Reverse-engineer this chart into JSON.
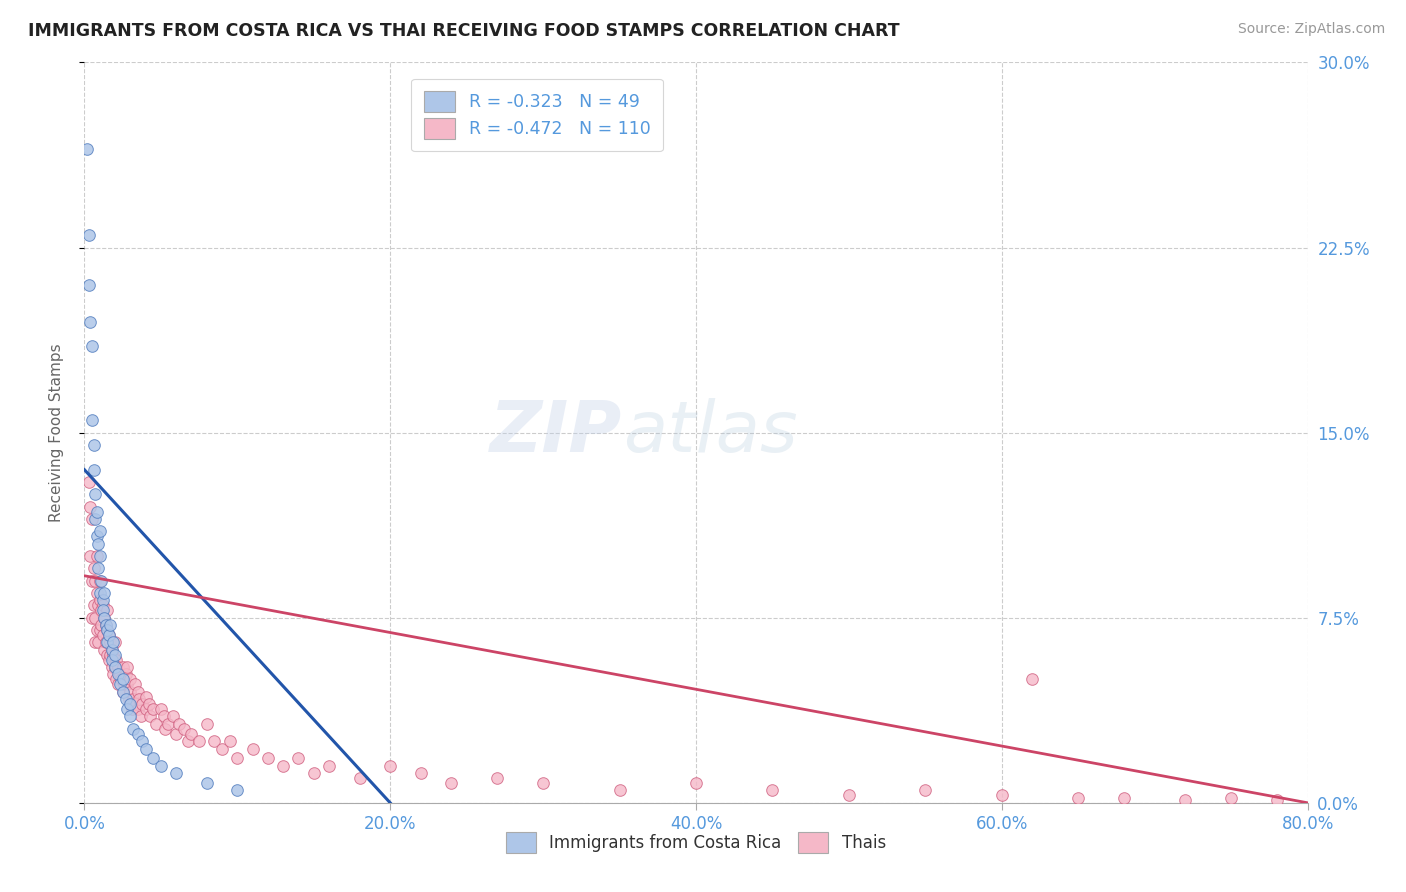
{
  "title": "IMMIGRANTS FROM COSTA RICA VS THAI RECEIVING FOOD STAMPS CORRELATION CHART",
  "source": "Source: ZipAtlas.com",
  "ylabel": "Receiving Food Stamps",
  "legend_label1": "Immigrants from Costa Rica",
  "legend_label2": "Thais",
  "R1": -0.323,
  "N1": 49,
  "R2": -0.472,
  "N2": 110,
  "color_cr": "#aec6e8",
  "color_cr_edge": "#5580c0",
  "color_cr_line": "#2255aa",
  "color_thai": "#f5b8c8",
  "color_thai_edge": "#d06080",
  "color_thai_line": "#cc4466",
  "color_axis_labels": "#5599dd",
  "title_color": "#222222",
  "watermark_color": "#c8d8ee",
  "background_color": "#ffffff",
  "grid_color": "#cccccc",
  "xlim": [
    0.0,
    0.8
  ],
  "ylim": [
    0.0,
    0.3
  ],
  "x_ticks": [
    0.0,
    0.2,
    0.4,
    0.6,
    0.8
  ],
  "y_ticks": [
    0.0,
    0.075,
    0.15,
    0.225,
    0.3
  ],
  "cr_line_x": [
    0.0,
    0.2
  ],
  "cr_line_y": [
    0.135,
    0.0
  ],
  "thai_line_x": [
    0.0,
    0.8
  ],
  "thai_line_y": [
    0.092,
    0.0
  ],
  "costa_rica_x": [
    0.002,
    0.003,
    0.003,
    0.004,
    0.005,
    0.005,
    0.006,
    0.006,
    0.007,
    0.007,
    0.008,
    0.008,
    0.009,
    0.009,
    0.01,
    0.01,
    0.01,
    0.011,
    0.012,
    0.012,
    0.013,
    0.013,
    0.014,
    0.015,
    0.015,
    0.016,
    0.017,
    0.018,
    0.018,
    0.019,
    0.02,
    0.02,
    0.022,
    0.023,
    0.025,
    0.025,
    0.027,
    0.028,
    0.03,
    0.03,
    0.032,
    0.035,
    0.038,
    0.04,
    0.045,
    0.05,
    0.06,
    0.08,
    0.1
  ],
  "costa_rica_y": [
    0.265,
    0.23,
    0.21,
    0.195,
    0.185,
    0.155,
    0.145,
    0.135,
    0.125,
    0.115,
    0.108,
    0.118,
    0.105,
    0.095,
    0.11,
    0.1,
    0.085,
    0.09,
    0.082,
    0.078,
    0.075,
    0.085,
    0.072,
    0.07,
    0.065,
    0.068,
    0.072,
    0.062,
    0.058,
    0.065,
    0.06,
    0.055,
    0.052,
    0.048,
    0.045,
    0.05,
    0.042,
    0.038,
    0.035,
    0.04,
    0.03,
    0.028,
    0.025,
    0.022,
    0.018,
    0.015,
    0.012,
    0.008,
    0.005
  ],
  "thai_x": [
    0.003,
    0.004,
    0.004,
    0.005,
    0.005,
    0.005,
    0.006,
    0.006,
    0.007,
    0.007,
    0.007,
    0.008,
    0.008,
    0.008,
    0.009,
    0.009,
    0.01,
    0.01,
    0.01,
    0.011,
    0.011,
    0.012,
    0.012,
    0.013,
    0.013,
    0.014,
    0.014,
    0.015,
    0.015,
    0.015,
    0.016,
    0.016,
    0.017,
    0.017,
    0.018,
    0.018,
    0.019,
    0.019,
    0.02,
    0.02,
    0.021,
    0.021,
    0.022,
    0.022,
    0.023,
    0.024,
    0.025,
    0.025,
    0.026,
    0.027,
    0.028,
    0.028,
    0.029,
    0.03,
    0.03,
    0.031,
    0.032,
    0.033,
    0.034,
    0.035,
    0.035,
    0.036,
    0.037,
    0.038,
    0.04,
    0.04,
    0.042,
    0.043,
    0.045,
    0.047,
    0.05,
    0.052,
    0.053,
    0.055,
    0.058,
    0.06,
    0.062,
    0.065,
    0.068,
    0.07,
    0.075,
    0.08,
    0.085,
    0.09,
    0.095,
    0.1,
    0.11,
    0.12,
    0.13,
    0.14,
    0.15,
    0.16,
    0.18,
    0.2,
    0.22,
    0.24,
    0.27,
    0.3,
    0.35,
    0.4,
    0.45,
    0.5,
    0.55,
    0.6,
    0.62,
    0.65,
    0.68,
    0.72,
    0.75,
    0.78
  ],
  "thai_y": [
    0.13,
    0.12,
    0.1,
    0.115,
    0.09,
    0.075,
    0.095,
    0.08,
    0.09,
    0.075,
    0.065,
    0.085,
    0.1,
    0.07,
    0.08,
    0.065,
    0.09,
    0.082,
    0.07,
    0.078,
    0.072,
    0.08,
    0.068,
    0.075,
    0.062,
    0.072,
    0.065,
    0.07,
    0.078,
    0.06,
    0.068,
    0.058,
    0.065,
    0.06,
    0.062,
    0.055,
    0.06,
    0.052,
    0.065,
    0.055,
    0.058,
    0.05,
    0.055,
    0.048,
    0.052,
    0.05,
    0.055,
    0.045,
    0.048,
    0.052,
    0.048,
    0.055,
    0.042,
    0.05,
    0.045,
    0.038,
    0.042,
    0.048,
    0.04,
    0.045,
    0.038,
    0.042,
    0.035,
    0.04,
    0.043,
    0.038,
    0.04,
    0.035,
    0.038,
    0.032,
    0.038,
    0.035,
    0.03,
    0.032,
    0.035,
    0.028,
    0.032,
    0.03,
    0.025,
    0.028,
    0.025,
    0.032,
    0.025,
    0.022,
    0.025,
    0.018,
    0.022,
    0.018,
    0.015,
    0.018,
    0.012,
    0.015,
    0.01,
    0.015,
    0.012,
    0.008,
    0.01,
    0.008,
    0.005,
    0.008,
    0.005,
    0.003,
    0.005,
    0.003,
    0.05,
    0.002,
    0.002,
    0.001,
    0.002,
    0.001
  ]
}
